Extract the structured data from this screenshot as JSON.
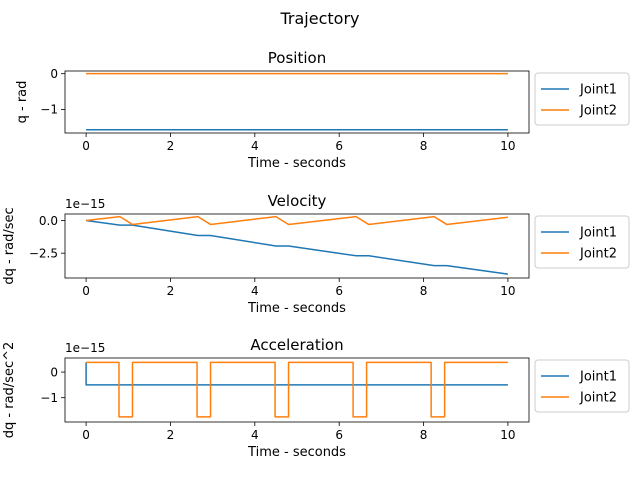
{
  "figure": {
    "suptitle": "Trajectory"
  },
  "chart_data": [
    {
      "type": "line",
      "title": "Position",
      "xlabel": "Time - seconds",
      "ylabel": "q - rad",
      "exponent_label": "",
      "xlim": [
        -0.5,
        10.5
      ],
      "ylim": [
        -1.66,
        0.075
      ],
      "xticks": [
        0,
        2,
        4,
        6,
        8,
        10
      ],
      "yticks": [
        0,
        -1
      ],
      "ytick_labels": [
        "0",
        "−1"
      ],
      "legend_position": "outside-right",
      "series": [
        {
          "name": "Joint1",
          "color": "#1f77b4",
          "x": [
            0,
            10
          ],
          "y": [
            -1.5708,
            -1.5708
          ]
        },
        {
          "name": "Joint2",
          "color": "#ff7f0e",
          "x": [
            0,
            10
          ],
          "y": [
            0,
            0
          ]
        }
      ]
    },
    {
      "type": "line",
      "title": "Velocity",
      "xlabel": "Time - seconds",
      "ylabel": "dq - rad/sec",
      "exponent_label": "1e−15",
      "xlim": [
        -0.5,
        10.5
      ],
      "ylim": [
        -4.4,
        0.5
      ],
      "xticks": [
        0,
        2,
        4,
        6,
        8,
        10
      ],
      "yticks": [
        0,
        -2.5
      ],
      "ytick_labels": [
        "0.0",
        "−2.5"
      ],
      "legend_position": "outside-right",
      "series": [
        {
          "name": "Joint1",
          "color": "#1f77b4",
          "x": [
            0,
            0.8,
            1.1,
            2.65,
            2.95,
            4.5,
            4.8,
            6.4,
            6.7,
            8.25,
            8.55,
            10
          ],
          "y": [
            0,
            -0.35,
            -0.35,
            -1.15,
            -1.15,
            -1.95,
            -1.95,
            -2.7,
            -2.7,
            -3.45,
            -3.45,
            -4.1
          ]
        },
        {
          "name": "Joint2",
          "color": "#ff7f0e",
          "x": [
            0,
            0.8,
            1.1,
            2.65,
            2.95,
            4.5,
            4.8,
            6.4,
            6.7,
            8.25,
            8.55,
            10
          ],
          "y": [
            0,
            0.3,
            -0.3,
            0.3,
            -0.3,
            0.3,
            -0.3,
            0.3,
            -0.3,
            0.3,
            -0.3,
            0.25
          ]
        }
      ]
    },
    {
      "type": "line",
      "title": "Acceleration",
      "xlabel": "Time - seconds",
      "ylabel": "dq - rad/sec^2",
      "exponent_label": "1e−15",
      "xlim": [
        -0.5,
        10.5
      ],
      "ylim": [
        -1.95,
        0.55
      ],
      "xticks": [
        0,
        2,
        4,
        6,
        8,
        10
      ],
      "yticks": [
        0,
        -1
      ],
      "ytick_labels": [
        "0",
        "−1"
      ],
      "legend_position": "outside-right",
      "series": [
        {
          "name": "Joint1",
          "color": "#1f77b4",
          "x": [
            0,
            0,
            10
          ],
          "y": [
            0.38,
            -0.5,
            -0.5
          ]
        },
        {
          "name": "Joint2",
          "color": "#ff7f0e",
          "x": [
            0,
            0.78,
            0.78,
            1.1,
            1.1,
            2.63,
            2.63,
            2.95,
            2.95,
            4.48,
            4.48,
            4.8,
            4.8,
            6.33,
            6.33,
            6.65,
            6.65,
            8.18,
            8.18,
            8.5,
            8.5,
            10
          ],
          "y": [
            0.38,
            0.38,
            -1.75,
            -1.75,
            0.38,
            0.38,
            -1.75,
            -1.75,
            0.38,
            0.38,
            -1.75,
            -1.75,
            0.38,
            0.38,
            -1.75,
            -1.75,
            0.38,
            0.38,
            -1.75,
            -1.75,
            0.38,
            0.38
          ]
        }
      ]
    }
  ]
}
